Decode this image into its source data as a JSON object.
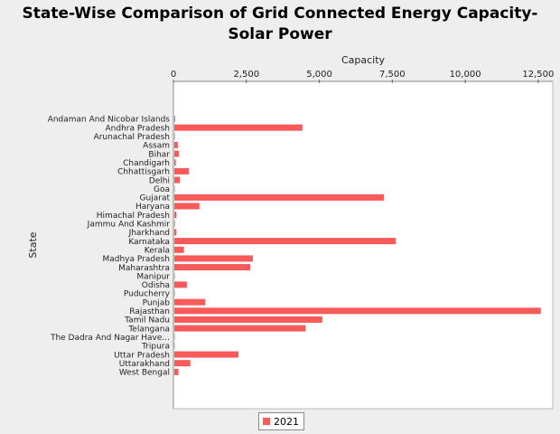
{
  "chart_data": {
    "type": "bar",
    "orientation": "horizontal",
    "title": "State-Wise Comparison of Grid Connected Energy Capacity- Solar Power",
    "xlabel": "Capacity",
    "ylabel": "State",
    "xlim": [
      0,
      13000
    ],
    "xticks": [
      0,
      2500,
      5000,
      7500,
      10000,
      12500
    ],
    "xtick_labels": [
      "0",
      "2,500",
      "5,000",
      "7,500",
      "10,000",
      "12,500"
    ],
    "x_axis_position": "top",
    "grid": false,
    "legend": "bottom",
    "categories": [
      "Andaman And Nicobar Islands",
      "Andhra Pradesh",
      "Arunachal Pradesh",
      "Assam",
      "Bihar",
      "Chandigarh",
      "Chhattisgarh",
      "Delhi",
      "Goa",
      "Gujarat",
      "Haryana",
      "Himachal Pradesh",
      "Jammu And Kashmir",
      "Jharkhand",
      "Karnataka",
      "Kerala",
      "Madhya Pradesh",
      "Maharashtra",
      "Manipur",
      "Odisha",
      "Puducherry",
      "Punjab",
      "Rajasthan",
      "Tamil Nadu",
      "Telangana",
      "The Dadra And Nagar Have...",
      "Tripura",
      "Uttar Pradesh",
      "Uttarakhand",
      "West Bengal"
    ],
    "series": [
      {
        "name": "2021",
        "color": "#f85a5a",
        "values": [
          29,
          4390,
          5,
          120,
          160,
          50,
          500,
          190,
          10,
          7180,
          860,
          70,
          20,
          70,
          7590,
          330,
          2690,
          2600,
          10,
          430,
          10,
          1060,
          12560,
          5070,
          4500,
          5,
          10,
          2200,
          550,
          140
        ]
      }
    ]
  }
}
